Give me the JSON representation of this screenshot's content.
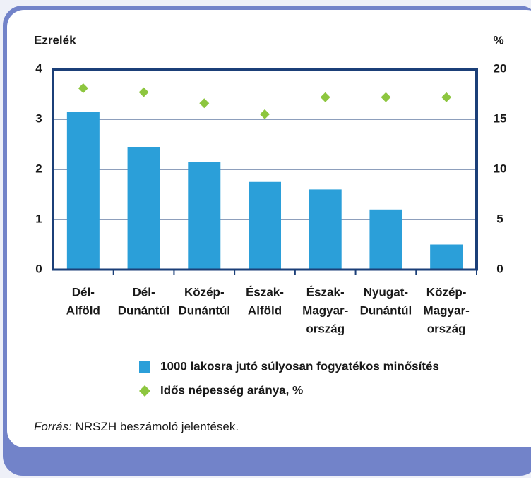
{
  "chart_data": {
    "type": "bar",
    "y_label": "Ezrelék",
    "y2_label": "%",
    "categories": [
      [
        "Dél-",
        "Alföld"
      ],
      [
        "Dél-",
        "Dunántúl"
      ],
      [
        "Közép-",
        "Dunántúl"
      ],
      [
        "Észak-",
        "Alföld"
      ],
      [
        "Észak-",
        "Magyar-",
        "ország"
      ],
      [
        "Nyugat-",
        "Dunántúl"
      ],
      [
        "Közép-",
        "Magyar-",
        "ország"
      ]
    ],
    "series": [
      {
        "name": "1000 lakosra jutó súlyosan fogyatékos minősítés",
        "type": "bar",
        "color": "#2b9fd9",
        "values": [
          3.15,
          2.45,
          2.15,
          1.75,
          1.6,
          1.2,
          0.5
        ]
      },
      {
        "name": "Idős népesség aránya, %",
        "type": "scatter",
        "axis": "y2",
        "color": "#8dc63f",
        "values": [
          18.1,
          17.7,
          16.6,
          15.5,
          17.2,
          17.2,
          17.2
        ]
      }
    ],
    "ylim": [
      0,
      4
    ],
    "yticks": [
      0,
      1,
      2,
      3,
      4
    ],
    "y2lim": [
      0,
      20
    ],
    "y2ticks": [
      0,
      5,
      10,
      15,
      20
    ],
    "grid": true,
    "source_label": "Forrás:",
    "source": "NRSZH beszámoló jelentések."
  }
}
